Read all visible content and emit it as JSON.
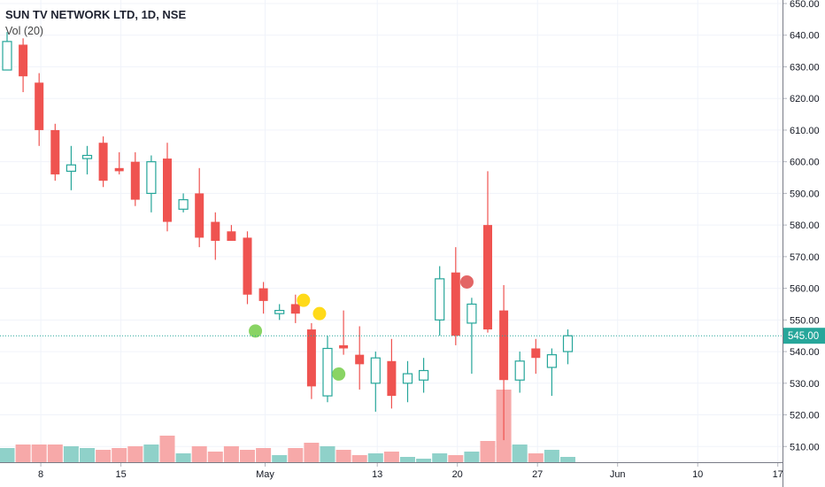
{
  "legend": {
    "title": "SUN TV NETWORK LTD, 1D, NSE",
    "volume_label": "Vol (20)"
  },
  "colors": {
    "up": "#26a69a",
    "down": "#ef5350",
    "up_volume": "#8fd1c9",
    "down_volume": "#f7a9a9",
    "last_price": "#26a69a",
    "grid": "#f0f3fa",
    "axis_text": "#131722",
    "dot_yellow": "#ffd600",
    "dot_green": "#7ccf53",
    "dot_red": "#e05555"
  },
  "chart_data": {
    "type": "candlestick",
    "price_axis": {
      "min": 500,
      "max": 650,
      "ticks": [
        "650.00",
        "640.00",
        "630.00",
        "620.00",
        "610.00",
        "600.00",
        "590.00",
        "580.00",
        "570.00",
        "560.00",
        "550.00",
        "540.00",
        "530.00",
        "520.00",
        "510.00"
      ]
    },
    "time_axis": {
      "tick_labels": [
        {
          "index": 1,
          "label": "8"
        },
        {
          "index": 6,
          "label": "15"
        },
        {
          "index": 15,
          "label": "May"
        },
        {
          "index": 22,
          "label": "13"
        },
        {
          "index": 27,
          "label": "20"
        },
        {
          "index": 32,
          "label": "27"
        },
        {
          "index": 37,
          "label": "Jun"
        },
        {
          "index": 42,
          "label": "10"
        },
        {
          "index": 47,
          "label": "17"
        }
      ],
      "total_slots": 49
    },
    "last_price": 545.0,
    "last_price_label": "545.00",
    "candles": [
      {
        "o": 629,
        "h": 641,
        "l": 629,
        "c": 638,
        "v": 8
      },
      {
        "o": 637,
        "h": 639,
        "l": 622,
        "c": 627,
        "v": 10
      },
      {
        "o": 625,
        "h": 628,
        "l": 605,
        "c": 610,
        "v": 10
      },
      {
        "o": 610,
        "h": 612,
        "l": 594,
        "c": 596,
        "v": 10
      },
      {
        "o": 597,
        "h": 605,
        "l": 591,
        "c": 599,
        "v": 9
      },
      {
        "o": 601,
        "h": 605,
        "l": 596,
        "c": 602,
        "v": 8
      },
      {
        "o": 606,
        "h": 608,
        "l": 592,
        "c": 594,
        "v": 7
      },
      {
        "o": 598,
        "h": 603,
        "l": 596,
        "c": 597,
        "v": 8
      },
      {
        "o": 600,
        "h": 603,
        "l": 586,
        "c": 588,
        "v": 9
      },
      {
        "o": 590,
        "h": 602,
        "l": 584,
        "c": 600,
        "v": 10
      },
      {
        "o": 601,
        "h": 606,
        "l": 578,
        "c": 581,
        "v": 15
      },
      {
        "o": 585,
        "h": 590,
        "l": 584,
        "c": 588,
        "v": 5
      },
      {
        "o": 590,
        "h": 598,
        "l": 573,
        "c": 576,
        "v": 9
      },
      {
        "o": 581,
        "h": 584,
        "l": 569,
        "c": 575,
        "v": 6
      },
      {
        "o": 578,
        "h": 580,
        "l": 575,
        "c": 575,
        "v": 9
      },
      {
        "o": 576,
        "h": 578,
        "l": 555,
        "c": 558,
        "v": 7
      },
      {
        "o": 560,
        "h": 562,
        "l": 552,
        "c": 556,
        "v": 8
      },
      {
        "o": 552,
        "h": 555,
        "l": 550,
        "c": 553,
        "v": 4
      },
      {
        "o": 555,
        "h": 558,
        "l": 549,
        "c": 552,
        "v": 8
      },
      {
        "o": 547,
        "h": 549,
        "l": 525,
        "c": 529,
        "v": 11
      },
      {
        "o": 526,
        "h": 545,
        "l": 524,
        "c": 541,
        "v": 9
      },
      {
        "o": 542,
        "h": 553,
        "l": 539,
        "c": 541,
        "v": 7
      },
      {
        "o": 539,
        "h": 548,
        "l": 528,
        "c": 536,
        "v": 4
      },
      {
        "o": 530,
        "h": 540,
        "l": 521,
        "c": 538,
        "v": 5
      },
      {
        "o": 537,
        "h": 544,
        "l": 522,
        "c": 526,
        "v": 6
      },
      {
        "o": 530,
        "h": 537,
        "l": 524,
        "c": 533,
        "v": 3
      },
      {
        "o": 531,
        "h": 538,
        "l": 527,
        "c": 534,
        "v": 2
      },
      {
        "o": 550,
        "h": 567,
        "l": 545,
        "c": 563,
        "v": 5
      },
      {
        "o": 565,
        "h": 573,
        "l": 542,
        "c": 545,
        "v": 4
      },
      {
        "o": 549,
        "h": 557,
        "l": 533,
        "c": 555,
        "v": 6
      },
      {
        "o": 580,
        "h": 597,
        "l": 546,
        "c": 547,
        "v": 12
      },
      {
        "o": 553,
        "h": 561,
        "l": 512,
        "c": 531,
        "v": 41
      },
      {
        "o": 531,
        "h": 540,
        "l": 527,
        "c": 537,
        "v": 10
      },
      {
        "o": 541,
        "h": 544,
        "l": 533,
        "c": 538,
        "v": 5
      },
      {
        "o": 535,
        "h": 541,
        "l": 526,
        "c": 539,
        "v": 7
      },
      {
        "o": 540,
        "h": 547,
        "l": 536,
        "c": 545,
        "v": 3
      }
    ],
    "volume_max": 41,
    "markers": [
      {
        "index": 15.5,
        "price": 546.5,
        "color": "dot_green"
      },
      {
        "index": 18.5,
        "price": 556.2,
        "color": "dot_yellow"
      },
      {
        "index": 19.5,
        "price": 552.0,
        "color": "dot_yellow"
      },
      {
        "index": 20.7,
        "price": 532.9,
        "color": "dot_green"
      },
      {
        "index": 28.7,
        "price": 562.0,
        "color": "dot_red"
      }
    ]
  }
}
